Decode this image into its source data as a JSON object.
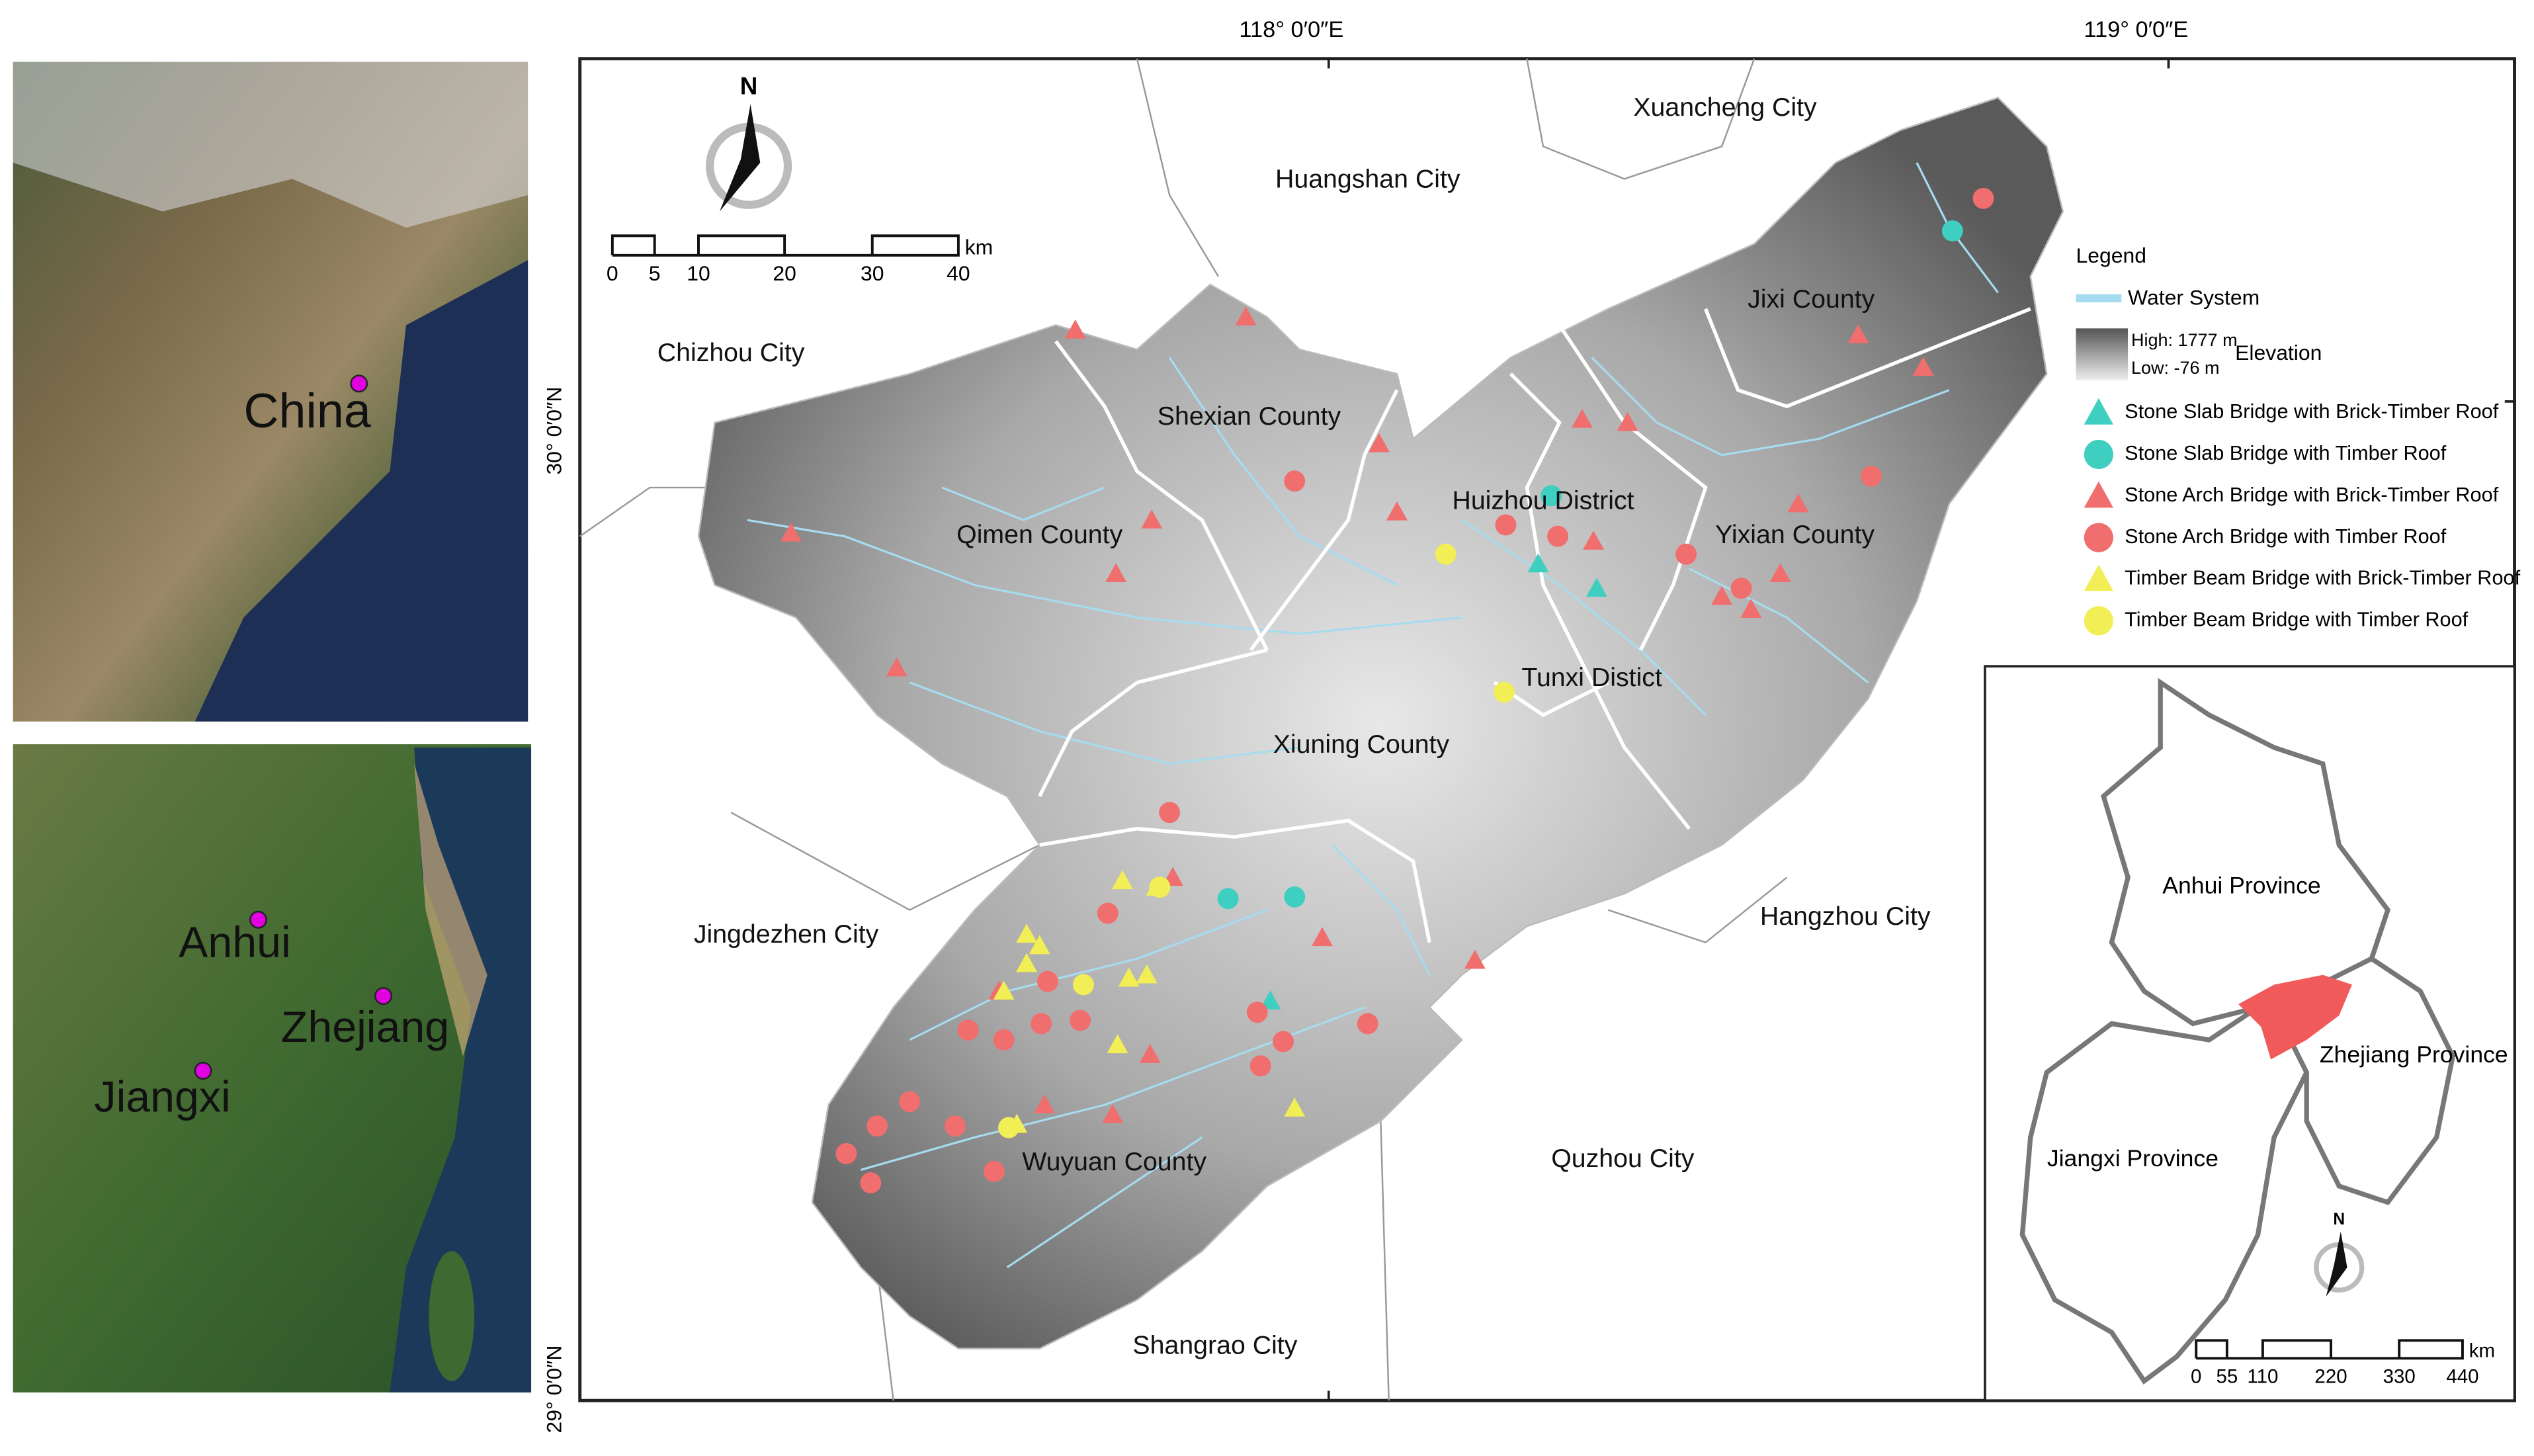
{
  "overview_maps": {
    "china": {
      "label": "China"
    },
    "region": {
      "labels": [
        "Anhui",
        "Zhejiang",
        "Jiangxi"
      ]
    }
  },
  "main_map": {
    "graticule": {
      "top": [
        "118°  0′0″E",
        "119°  0′0″E"
      ],
      "left": [
        "30°  0′0″N",
        "29°  0′0″N"
      ]
    },
    "north": "N",
    "scale_bar": {
      "labels": [
        "0",
        "5",
        "10",
        "20",
        "30",
        "40"
      ],
      "unit": "km"
    },
    "place_labels": [
      "Chizhou City",
      "Huangshan City",
      "Xuancheng City",
      "Jixi County",
      "Shexian County",
      "Qimen County",
      "Huizhou District",
      "Yixian County",
      "Tunxi Distict",
      "Xiuning County",
      "Jingdezhen City",
      "Hangzhou City",
      "Wuyuan County",
      "Quzhou City",
      "Shangrao City"
    ],
    "legend": {
      "title": "Legend",
      "water": "Water System",
      "high": "High: 1777 m",
      "low": "Low: -76 m",
      "elevation": "Elevation",
      "items": [
        "Stone Slab Bridge with Brick-Timber Roof",
        "Stone Slab Bridge with Timber Roof",
        "Stone Arch Bridge with Brick-Timber Roof",
        "Stone Arch Bridge with Timber Roof",
        "Timber Beam Bridge with Brick-Timber Roof",
        "Timber Beam Bridge with Timber Roof"
      ]
    }
  },
  "inset_map": {
    "labels": [
      "Anhui Province",
      "Zhejiang Province",
      "Jiangxi Province"
    ],
    "north": "N",
    "scale_bar": {
      "labels": [
        "0",
        "55",
        "110",
        "220",
        "330",
        "440"
      ],
      "unit": "km"
    }
  }
}
